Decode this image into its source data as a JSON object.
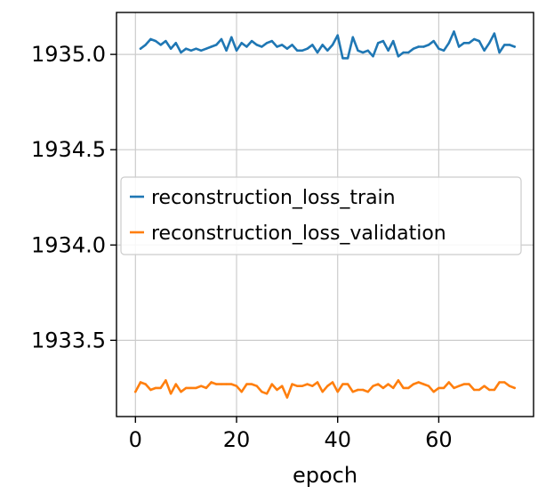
{
  "chart_data": {
    "type": "line",
    "title": "",
    "xlabel": "epoch",
    "ylabel": "",
    "xlim": [
      -3.75,
      78.75
    ],
    "ylim": [
      1933.1,
      1935.22
    ],
    "xticks": [
      0,
      20,
      40,
      60
    ],
    "xtick_labels": [
      "0",
      "20",
      "40",
      "60"
    ],
    "yticks": [
      1933.5,
      1934.0,
      1934.5,
      1935.0
    ],
    "ytick_labels": [
      "1933.5",
      "1934.0",
      "1934.5",
      "1935.0"
    ],
    "grid": true,
    "legend_position": "center-left",
    "series": [
      {
        "name": "reconstruction_loss_train",
        "color": "#1f77b4",
        "x": [
          1,
          2,
          3,
          4,
          5,
          6,
          7,
          8,
          9,
          10,
          11,
          12,
          13,
          14,
          15,
          16,
          17,
          18,
          19,
          20,
          21,
          22,
          23,
          24,
          25,
          26,
          27,
          28,
          29,
          30,
          31,
          32,
          33,
          34,
          35,
          36,
          37,
          38,
          39,
          40,
          41,
          42,
          43,
          44,
          45,
          46,
          47,
          48,
          49,
          50,
          51,
          52,
          53,
          54,
          55,
          56,
          57,
          58,
          59,
          60,
          61,
          62,
          63,
          64,
          65,
          66,
          67,
          68,
          69,
          70,
          71,
          72,
          73,
          74,
          75
        ],
        "y": [
          1935.03,
          1935.05,
          1935.08,
          1935.07,
          1935.05,
          1935.07,
          1935.03,
          1935.06,
          1935.01,
          1935.03,
          1935.02,
          1935.03,
          1935.02,
          1935.03,
          1935.04,
          1935.05,
          1935.08,
          1935.02,
          1935.09,
          1935.02,
          1935.06,
          1935.04,
          1935.07,
          1935.05,
          1935.04,
          1935.06,
          1935.07,
          1935.04,
          1935.05,
          1935.03,
          1935.05,
          1935.02,
          1935.02,
          1935.03,
          1935.05,
          1935.01,
          1935.05,
          1935.02,
          1935.05,
          1935.1,
          1934.98,
          1934.98,
          1935.09,
          1935.02,
          1935.01,
          1935.02,
          1934.99,
          1935.06,
          1935.07,
          1935.02,
          1935.07,
          1934.99,
          1935.01,
          1935.01,
          1935.03,
          1935.04,
          1935.04,
          1935.05,
          1935.07,
          1935.03,
          1935.02,
          1935.06,
          1935.12,
          1935.04,
          1935.06,
          1935.06,
          1935.08,
          1935.07,
          1935.02,
          1935.06,
          1935.11,
          1935.01,
          1935.05,
          1935.05,
          1935.04
        ]
      },
      {
        "name": "reconstruction_loss_validation",
        "color": "#ff7f0e",
        "x": [
          0,
          1,
          2,
          3,
          4,
          5,
          6,
          7,
          8,
          9,
          10,
          11,
          12,
          13,
          14,
          15,
          16,
          17,
          18,
          19,
          20,
          21,
          22,
          23,
          24,
          25,
          26,
          27,
          28,
          29,
          30,
          31,
          32,
          33,
          34,
          35,
          36,
          37,
          38,
          39,
          40,
          41,
          42,
          43,
          44,
          45,
          46,
          47,
          48,
          49,
          50,
          51,
          52,
          53,
          54,
          55,
          56,
          57,
          58,
          59,
          60,
          61,
          62,
          63,
          64,
          65,
          66,
          67,
          68,
          69,
          70,
          71,
          72,
          73,
          74,
          75
        ],
        "y": [
          1933.23,
          1933.28,
          1933.27,
          1933.24,
          1933.25,
          1933.25,
          1933.29,
          1933.22,
          1933.27,
          1933.23,
          1933.25,
          1933.25,
          1933.25,
          1933.26,
          1933.25,
          1933.28,
          1933.27,
          1933.27,
          1933.27,
          1933.27,
          1933.26,
          1933.23,
          1933.27,
          1933.27,
          1933.26,
          1933.23,
          1933.22,
          1933.27,
          1933.24,
          1933.26,
          1933.2,
          1933.27,
          1933.26,
          1933.26,
          1933.27,
          1933.26,
          1933.28,
          1933.23,
          1933.26,
          1933.28,
          1933.23,
          1933.27,
          1933.27,
          1933.23,
          1933.24,
          1933.24,
          1933.23,
          1933.26,
          1933.27,
          1933.25,
          1933.27,
          1933.25,
          1933.29,
          1933.25,
          1933.25,
          1933.27,
          1933.28,
          1933.27,
          1933.26,
          1933.23,
          1933.25,
          1933.25,
          1933.28,
          1933.25,
          1933.26,
          1933.27,
          1933.27,
          1933.24,
          1933.24,
          1933.26,
          1933.24,
          1933.24,
          1933.28,
          1933.28,
          1933.26,
          1933.25
        ]
      }
    ]
  }
}
